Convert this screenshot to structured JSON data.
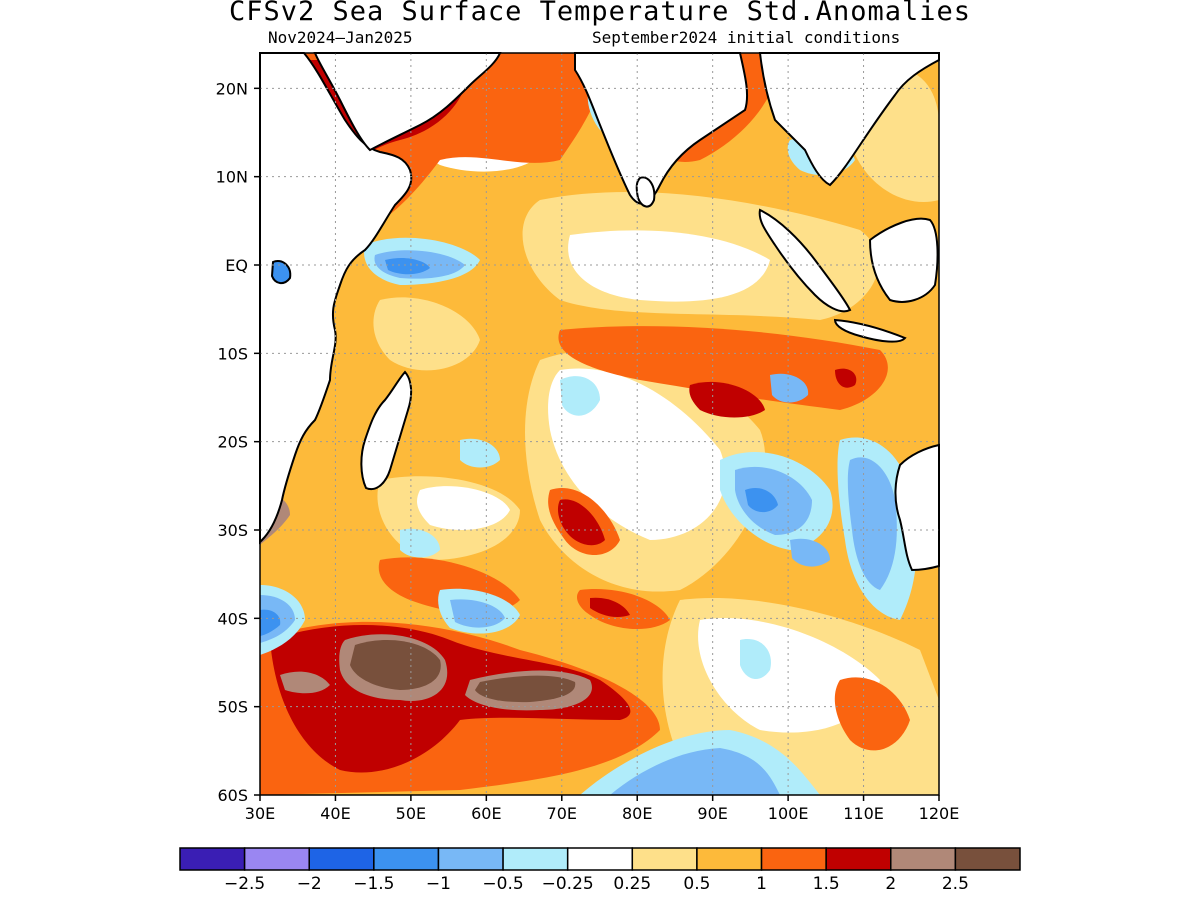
{
  "title": "CFSv2 Sea Surface Temperature Std.Anomalies",
  "subtitle_left": "Nov2024–Jan2025",
  "subtitle_right": "September2024 initial conditions",
  "map": {
    "lon_range": [
      30,
      120
    ],
    "lat_range": [
      -60,
      24
    ],
    "lon_ticks": [
      {
        "lon": 30,
        "label": "30E"
      },
      {
        "lon": 40,
        "label": "40E"
      },
      {
        "lon": 50,
        "label": "50E"
      },
      {
        "lon": 60,
        "label": "60E"
      },
      {
        "lon": 70,
        "label": "70E"
      },
      {
        "lon": 80,
        "label": "80E"
      },
      {
        "lon": 90,
        "label": "90E"
      },
      {
        "lon": 100,
        "label": "100E"
      },
      {
        "lon": 110,
        "label": "110E"
      },
      {
        "lon": 120,
        "label": "120E"
      }
    ],
    "lat_ticks": [
      {
        "lat": 20,
        "label": "20N"
      },
      {
        "lat": 10,
        "label": "10N"
      },
      {
        "lat": 0,
        "label": "EQ"
      },
      {
        "lat": -10,
        "label": "10S"
      },
      {
        "lat": -20,
        "label": "20S"
      },
      {
        "lat": -30,
        "label": "30S"
      },
      {
        "lat": -40,
        "label": "40S"
      },
      {
        "lat": -50,
        "label": "50S"
      },
      {
        "lat": -60,
        "label": "60S"
      }
    ]
  },
  "colorbar": {
    "colors": [
      "#3a1eb4",
      "#9a86f2",
      "#1e64e6",
      "#3c92f0",
      "#78b8f6",
      "#b0ecfa",
      "#ffffff",
      "#fee08a",
      "#fdba3a",
      "#fa6410",
      "#c00000",
      "#b08878",
      "#78503c"
    ],
    "labels": [
      "−2.5",
      "−2",
      "−1.5",
      "−1",
      "−0.5",
      "−0.25",
      "0.25",
      "0.5",
      "1",
      "1.5",
      "2",
      "2.5"
    ]
  }
}
